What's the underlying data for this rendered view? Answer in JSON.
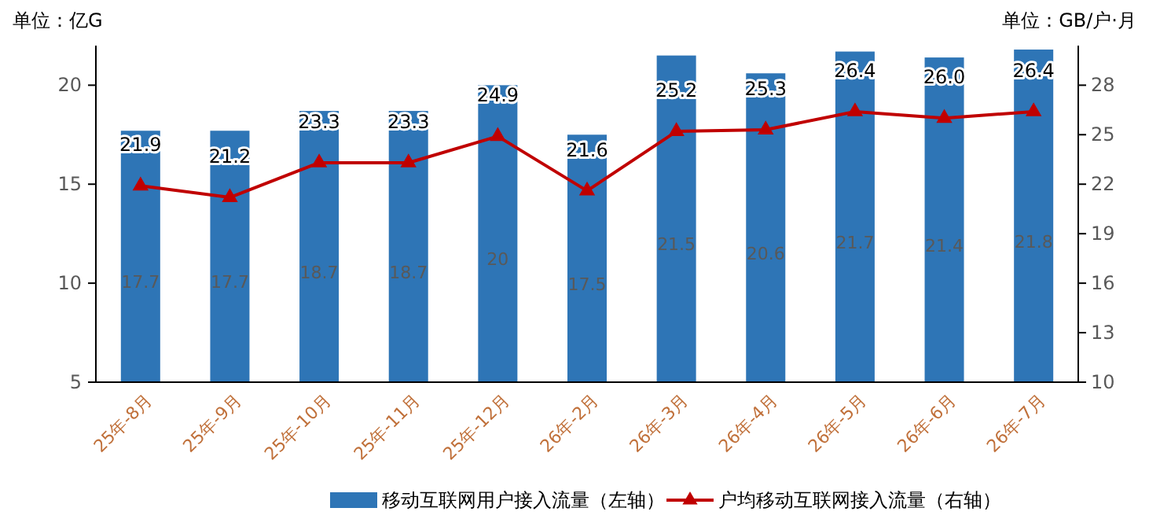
{
  "chart_data": {
    "type": "bar",
    "ylabel": "单位：亿G",
    "y2label": "单位：GB/户·月",
    "categories": [
      "25年-8月",
      "25年-9月",
      "25年-10月",
      "25年-11月",
      "25年-12月",
      "26年-2月",
      "26年-3月",
      "26年-4月",
      "26年-5月",
      "26年-6月",
      "26年-7月"
    ],
    "series": [
      {
        "name": "移动互联网用户接入流量（左轴）",
        "color": "#2e75b6",
        "values": [
          17.7,
          17.7,
          18.7,
          18.7,
          20,
          17.5,
          21.5,
          20.6,
          21.7,
          21.4,
          21.8
        ],
        "value_labels": [
          "17.7",
          "17.7",
          "18.7",
          "18.7",
          "20",
          "17.5",
          "21.5",
          "20.6",
          "21.7",
          "21.4",
          "21.8"
        ]
      },
      {
        "name": "户均移动互联网接入流量（右轴）",
        "type": "line",
        "axis": "y2",
        "color": "#c00000",
        "marker": "triangle",
        "values": [
          21.9,
          21.2,
          23.3,
          23.3,
          24.9,
          21.6,
          25.2,
          25.3,
          26.4,
          26.0,
          26.4
        ],
        "value_labels": [
          "21.9",
          "21.2",
          "23.3",
          "23.3",
          "24.9",
          "21.6",
          "25.2",
          "25.3",
          "26.4",
          "26.0",
          "26.4"
        ]
      }
    ],
    "ylim": [
      5,
      22
    ],
    "yticks": [
      5,
      10,
      15,
      20
    ],
    "y2lim": [
      10,
      30.4
    ],
    "y2ticks": [
      10,
      13,
      16,
      19,
      22,
      25,
      28
    ],
    "grid": false,
    "legend": "bottom"
  }
}
